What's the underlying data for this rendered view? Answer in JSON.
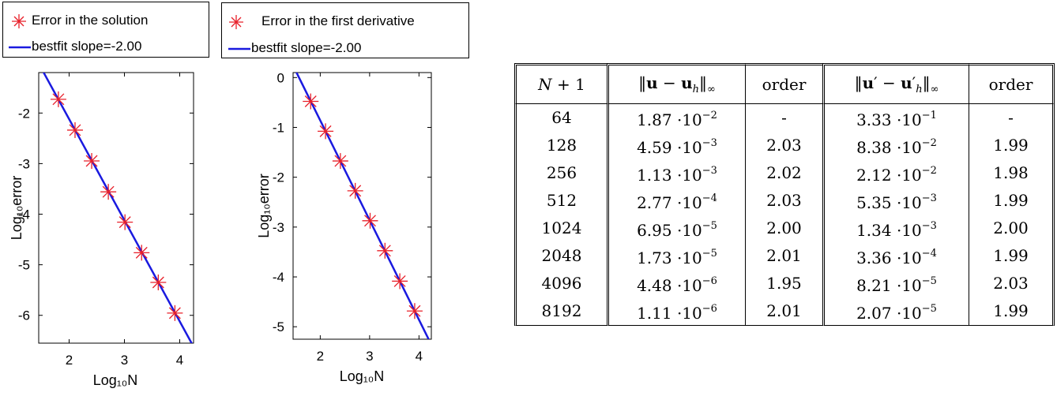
{
  "chart_data": [
    {
      "type": "line",
      "xlabel": "Log₁₀N",
      "ylabel": "Log₁₀error",
      "xlim": [
        1.45,
        4.25
      ],
      "ylim": [
        -6.55,
        -1.2
      ],
      "xticks": [
        "2",
        "3",
        "4"
      ],
      "yticks": [
        "-2",
        "-3",
        "-4",
        "-5",
        "-6"
      ],
      "legend_position": "top-left",
      "series": [
        {
          "name": "Error in the solution",
          "marker": "asterisk",
          "color": "#e8202a",
          "x": [
            1.806,
            2.107,
            2.408,
            2.709,
            3.01,
            3.311,
            3.612,
            3.913
          ],
          "y": [
            -1.728,
            -2.338,
            -2.947,
            -3.558,
            -4.158,
            -4.762,
            -5.349,
            -5.955
          ]
        },
        {
          "name": "bestfit slope=-2.00",
          "marker": "none",
          "color": "#1a1adf",
          "x": [
            1.45,
            4.25
          ],
          "y": [
            -1.02,
            -6.62
          ]
        }
      ]
    },
    {
      "type": "line",
      "xlabel": "Log₁₀N",
      "ylabel": "Log₁₀error",
      "xlim": [
        1.45,
        4.25
      ],
      "ylim": [
        -5.25,
        0.1
      ],
      "xticks": [
        "2",
        "3",
        "4"
      ],
      "yticks": [
        "0",
        "-1",
        "-2",
        "-3",
        "-4",
        "-5"
      ],
      "legend_position": "top-left",
      "series": [
        {
          "name": "Error in the first derivative",
          "marker": "asterisk",
          "color": "#e8202a",
          "x": [
            1.806,
            2.107,
            2.408,
            2.709,
            3.01,
            3.311,
            3.612,
            3.913
          ],
          "y": [
            -0.478,
            -1.077,
            -1.674,
            -2.272,
            -2.873,
            -3.474,
            -4.086,
            -4.684
          ]
        },
        {
          "name": "bestfit slope=-2.00",
          "marker": "none",
          "color": "#1a1adf",
          "x": [
            1.45,
            4.25
          ],
          "y": [
            0.24,
            -5.36
          ]
        }
      ]
    }
  ],
  "table": {
    "rows": [
      {
        "n": "64",
        "m1": "1.87",
        "e1": "−2",
        "o1": "-",
        "m2": "3.33",
        "e2": "−1",
        "o2": "-"
      },
      {
        "n": "128",
        "m1": "4.59",
        "e1": "−3",
        "o1": "2.03",
        "m2": "8.38",
        "e2": "−2",
        "o2": "1.99"
      },
      {
        "n": "256",
        "m1": "1.13",
        "e1": "−3",
        "o1": "2.02",
        "m2": "2.12",
        "e2": "−2",
        "o2": "1.98"
      },
      {
        "n": "512",
        "m1": "2.77",
        "e1": "−4",
        "o1": "2.03",
        "m2": "5.35",
        "e2": "−3",
        "o2": "1.99"
      },
      {
        "n": "1024",
        "m1": "6.95",
        "e1": "−5",
        "o1": "2.00",
        "m2": "1.34",
        "e2": "−3",
        "o2": "2.00"
      },
      {
        "n": "2048",
        "m1": "1.73",
        "e1": "−5",
        "o1": "2.01",
        "m2": "3.36",
        "e2": "−4",
        "o2": "1.99"
      },
      {
        "n": "4096",
        "m1": "4.48",
        "e1": "−6",
        "o1": "1.95",
        "m2": "8.21",
        "e2": "−5",
        "o2": "2.03"
      },
      {
        "n": "8192",
        "m1": "1.11",
        "e1": "−6",
        "o1": "2.01",
        "m2": "2.07",
        "e2": "−5",
        "o2": "1.99"
      }
    ]
  }
}
